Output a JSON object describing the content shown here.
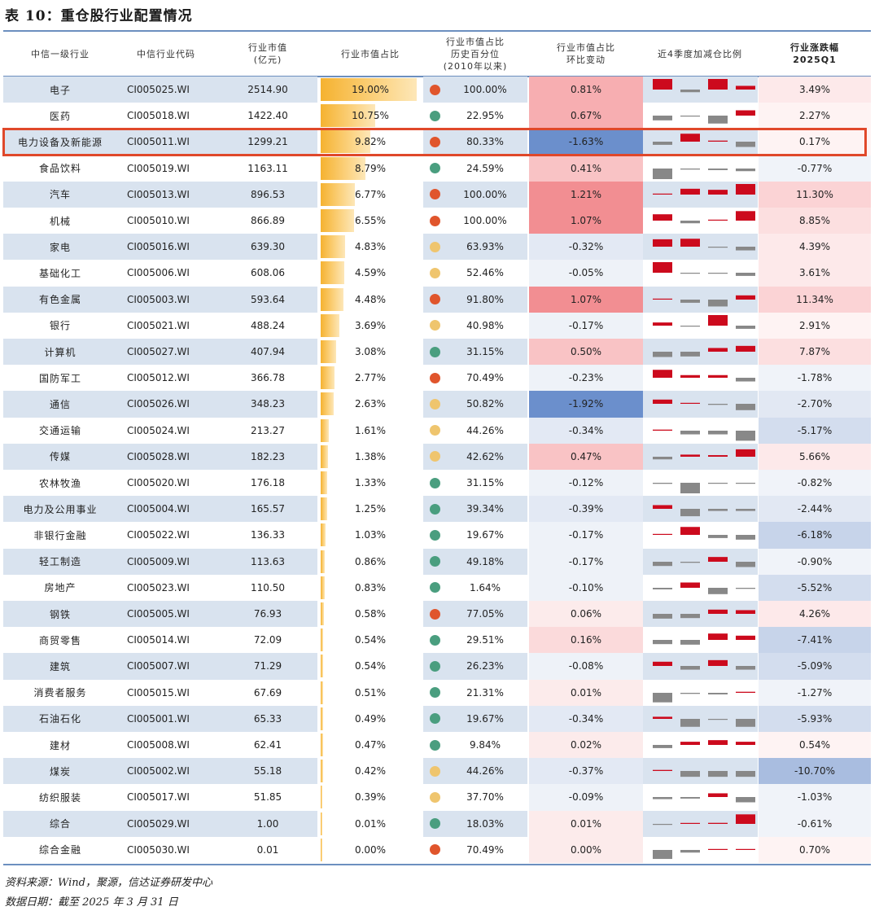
{
  "title": "表 10：重仓股行业配置情况",
  "headers": {
    "industry": "中信一级行业",
    "code": "中信行业代码",
    "market_value": "行业市值\n(亿元)",
    "share": "行业市值占比",
    "percentile": "行业市值占比\n历史百分位\n(2010年以来)",
    "change": "行业市值占比\n环比变动",
    "quarters": "近4季度加减仓比例",
    "return": "行业涨跌幅\n2025Q1"
  },
  "colors": {
    "dot_red": "#e0552c",
    "dot_green": "#4a9e7f",
    "dot_yellow": "#efc56e",
    "increase": "#cc0a1d",
    "decrease": "#888888",
    "negative_strong": "#6b8fcc",
    "positive_strong": "#f08a8e"
  },
  "rows": [
    {
      "name": "电子",
      "code": "CI005025.WI",
      "mv": "2514.90",
      "share": "19.00%",
      "share_value": 19.0,
      "dot": "red",
      "pct": "100.00%",
      "chg": "0.81%",
      "chg_value": 0.81,
      "ret": "3.49%",
      "ret_value": 3.49,
      "spark": [
        1.0,
        -0.25,
        1.0,
        0.35
      ]
    },
    {
      "name": "医药",
      "code": "CI005018.WI",
      "mv": "1422.40",
      "share": "10.75%",
      "share_value": 10.75,
      "dot": "green",
      "pct": "22.95%",
      "chg": "0.67%",
      "chg_value": 0.67,
      "ret": "2.27%",
      "ret_value": 2.27,
      "spark": [
        -0.45,
        -0.08,
        -0.75,
        0.5
      ]
    },
    {
      "name": "电力设备及新能源",
      "code": "CI005011.WI",
      "mv": "1299.21",
      "share": "9.82%",
      "share_value": 9.82,
      "dot": "red",
      "pct": "80.33%",
      "chg": "-1.63%",
      "chg_value": -1.63,
      "ret": "0.17%",
      "ret_value": 0.17,
      "spark": [
        -0.3,
        0.75,
        0.1,
        -0.5
      ]
    },
    {
      "name": "食品饮料",
      "code": "CI005019.WI",
      "mv": "1163.11",
      "share": "8.79%",
      "share_value": 8.79,
      "dot": "green",
      "pct": "24.59%",
      "chg": "0.41%",
      "chg_value": 0.41,
      "ret": "-0.77%",
      "ret_value": -0.77,
      "spark": [
        -1.0,
        -0.1,
        -0.15,
        -0.25
      ]
    },
    {
      "name": "汽车",
      "code": "CI005013.WI",
      "mv": "896.53",
      "share": "6.77%",
      "share_value": 6.77,
      "dot": "red",
      "pct": "100.00%",
      "chg": "1.21%",
      "chg_value": 1.21,
      "ret": "11.30%",
      "ret_value": 11.3,
      "spark": [
        0.05,
        0.55,
        0.45,
        1.0
      ]
    },
    {
      "name": "机械",
      "code": "CI005010.WI",
      "mv": "866.89",
      "share": "6.55%",
      "share_value": 6.55,
      "dot": "red",
      "pct": "100.00%",
      "chg": "1.07%",
      "chg_value": 1.07,
      "ret": "8.85%",
      "ret_value": 8.85,
      "spark": [
        0.6,
        -0.25,
        0.05,
        0.9
      ]
    },
    {
      "name": "家电",
      "code": "CI005016.WI",
      "mv": "639.30",
      "share": "4.83%",
      "share_value": 4.83,
      "dot": "yellow",
      "pct": "63.93%",
      "chg": "-0.32%",
      "chg_value": -0.32,
      "ret": "4.39%",
      "ret_value": 4.39,
      "spark": [
        0.7,
        0.75,
        -0.05,
        -0.35
      ]
    },
    {
      "name": "基础化工",
      "code": "CI005006.WI",
      "mv": "608.06",
      "share": "4.59%",
      "share_value": 4.59,
      "dot": "yellow",
      "pct": "52.46%",
      "chg": "-0.05%",
      "chg_value": -0.05,
      "ret": "3.61%",
      "ret_value": 3.61,
      "spark": [
        1.0,
        -0.05,
        -0.05,
        -0.3
      ]
    },
    {
      "name": "有色金属",
      "code": "CI005003.WI",
      "mv": "593.64",
      "share": "4.48%",
      "share_value": 4.48,
      "dot": "red",
      "pct": "91.80%",
      "chg": "1.07%",
      "chg_value": 1.07,
      "ret": "11.34%",
      "ret_value": 11.34,
      "spark": [
        0.05,
        -0.3,
        -0.65,
        0.4
      ]
    },
    {
      "name": "银行",
      "code": "CI005021.WI",
      "mv": "488.24",
      "share": "3.69%",
      "share_value": 3.69,
      "dot": "yellow",
      "pct": "40.98%",
      "chg": "-0.17%",
      "chg_value": -0.17,
      "ret": "2.91%",
      "ret_value": 2.91,
      "spark": [
        0.3,
        -0.05,
        1.0,
        -0.3
      ]
    },
    {
      "name": "计算机",
      "code": "CI005027.WI",
      "mv": "407.94",
      "share": "3.08%",
      "share_value": 3.08,
      "dot": "green",
      "pct": "31.15%",
      "chg": "0.50%",
      "chg_value": 0.5,
      "ret": "7.87%",
      "ret_value": 7.87,
      "spark": [
        -0.5,
        -0.45,
        0.35,
        0.55
      ]
    },
    {
      "name": "国防军工",
      "code": "CI005012.WI",
      "mv": "366.78",
      "share": "2.77%",
      "share_value": 2.77,
      "dot": "red",
      "pct": "70.49%",
      "chg": "-0.23%",
      "chg_value": -0.23,
      "ret": "-1.78%",
      "ret_value": -1.78,
      "spark": [
        0.75,
        0.25,
        0.25,
        -0.35
      ]
    },
    {
      "name": "通信",
      "code": "CI005026.WI",
      "mv": "348.23",
      "share": "2.63%",
      "share_value": 2.63,
      "dot": "yellow",
      "pct": "50.82%",
      "chg": "-1.92%",
      "chg_value": -1.92,
      "ret": "-2.70%",
      "ret_value": -2.7,
      "spark": [
        0.4,
        0.05,
        -0.1,
        -0.6
      ]
    },
    {
      "name": "交通运输",
      "code": "CI005024.WI",
      "mv": "213.27",
      "share": "1.61%",
      "share_value": 1.61,
      "dot": "yellow",
      "pct": "44.26%",
      "chg": "-0.34%",
      "chg_value": -0.34,
      "ret": "-5.17%",
      "ret_value": -5.17,
      "spark": [
        0.1,
        -0.35,
        -0.35,
        -0.95
      ]
    },
    {
      "name": "传媒",
      "code": "CI005028.WI",
      "mv": "182.23",
      "share": "1.38%",
      "share_value": 1.38,
      "dot": "yellow",
      "pct": "42.62%",
      "chg": "0.47%",
      "chg_value": 0.47,
      "ret": "5.66%",
      "ret_value": 5.66,
      "spark": [
        -0.25,
        0.2,
        0.15,
        0.7
      ]
    },
    {
      "name": "农林牧渔",
      "code": "CI005020.WI",
      "mv": "176.18",
      "share": "1.33%",
      "share_value": 1.33,
      "dot": "green",
      "pct": "31.15%",
      "chg": "-0.12%",
      "chg_value": -0.12,
      "ret": "-0.82%",
      "ret_value": -0.82,
      "spark": [
        -0.1,
        -1.0,
        -0.05,
        -0.05
      ]
    },
    {
      "name": "电力及公用事业",
      "code": "CI005004.WI",
      "mv": "165.57",
      "share": "1.25%",
      "share_value": 1.25,
      "dot": "green",
      "pct": "39.34%",
      "chg": "-0.39%",
      "chg_value": -0.39,
      "ret": "-2.44%",
      "ret_value": -2.44,
      "spark": [
        0.35,
        -0.7,
        -0.2,
        -0.2
      ]
    },
    {
      "name": "非银行金融",
      "code": "CI005022.WI",
      "mv": "136.33",
      "share": "1.03%",
      "share_value": 1.03,
      "dot": "green",
      "pct": "19.67%",
      "chg": "-0.17%",
      "chg_value": -0.17,
      "ret": "-6.18%",
      "ret_value": -6.18,
      "spark": [
        0.05,
        0.75,
        -0.3,
        -0.45
      ]
    },
    {
      "name": "轻工制造",
      "code": "CI005009.WI",
      "mv": "113.63",
      "share": "0.86%",
      "share_value": 0.86,
      "dot": "green",
      "pct": "49.18%",
      "chg": "-0.17%",
      "chg_value": -0.17,
      "ret": "-0.90%",
      "ret_value": -0.9,
      "spark": [
        -0.4,
        -0.1,
        0.45,
        -0.5
      ]
    },
    {
      "name": "房地产",
      "code": "CI005023.WI",
      "mv": "110.50",
      "share": "0.83%",
      "share_value": 0.83,
      "dot": "green",
      "pct": "1.64%",
      "chg": "-0.10%",
      "chg_value": -0.1,
      "ret": "-5.52%",
      "ret_value": -5.52,
      "spark": [
        -0.15,
        0.5,
        -0.6,
        -0.1
      ]
    },
    {
      "name": "钢铁",
      "code": "CI005005.WI",
      "mv": "76.93",
      "share": "0.58%",
      "share_value": 0.58,
      "dot": "red",
      "pct": "77.05%",
      "chg": "0.06%",
      "chg_value": 0.06,
      "ret": "4.26%",
      "ret_value": 4.26,
      "spark": [
        -0.45,
        -0.4,
        0.4,
        0.35
      ]
    },
    {
      "name": "商贸零售",
      "code": "CI005014.WI",
      "mv": "72.09",
      "share": "0.54%",
      "share_value": 0.54,
      "dot": "green",
      "pct": "29.51%",
      "chg": "0.16%",
      "chg_value": 0.16,
      "ret": "-7.41%",
      "ret_value": -7.41,
      "spark": [
        -0.4,
        -0.45,
        0.6,
        0.4
      ]
    },
    {
      "name": "建筑",
      "code": "CI005007.WI",
      "mv": "71.29",
      "share": "0.54%",
      "share_value": 0.54,
      "dot": "green",
      "pct": "26.23%",
      "chg": "-0.08%",
      "chg_value": -0.08,
      "ret": "-5.09%",
      "ret_value": -5.09,
      "spark": [
        0.4,
        -0.35,
        0.55,
        -0.35
      ]
    },
    {
      "name": "消费者服务",
      "code": "CI005015.WI",
      "mv": "67.69",
      "share": "0.51%",
      "share_value": 0.51,
      "dot": "green",
      "pct": "21.31%",
      "chg": "0.01%",
      "chg_value": 0.01,
      "ret": "-1.27%",
      "ret_value": -1.27,
      "spark": [
        -0.9,
        -0.1,
        -0.15,
        0.1
      ]
    },
    {
      "name": "石油石化",
      "code": "CI005001.WI",
      "mv": "65.33",
      "share": "0.49%",
      "share_value": 0.49,
      "dot": "green",
      "pct": "19.67%",
      "chg": "-0.34%",
      "chg_value": -0.34,
      "ret": "-5.93%",
      "ret_value": -5.93,
      "spark": [
        0.2,
        -0.75,
        -0.05,
        -0.75
      ]
    },
    {
      "name": "建材",
      "code": "CI005008.WI",
      "mv": "62.41",
      "share": "0.47%",
      "share_value": 0.47,
      "dot": "green",
      "pct": "9.84%",
      "chg": "0.02%",
      "chg_value": 0.02,
      "ret": "0.54%",
      "ret_value": 0.54,
      "spark": [
        -0.3,
        0.3,
        0.45,
        0.3
      ]
    },
    {
      "name": "煤炭",
      "code": "CI005002.WI",
      "mv": "55.18",
      "share": "0.42%",
      "share_value": 0.42,
      "dot": "yellow",
      "pct": "44.26%",
      "chg": "-0.37%",
      "chg_value": -0.37,
      "ret": "-10.70%",
      "ret_value": -10.7,
      "spark": [
        0.1,
        -0.55,
        -0.55,
        -0.55
      ]
    },
    {
      "name": "纺织服装",
      "code": "CI005017.WI",
      "mv": "51.85",
      "share": "0.39%",
      "share_value": 0.39,
      "dot": "yellow",
      "pct": "37.70%",
      "chg": "-0.09%",
      "chg_value": -0.09,
      "ret": "-1.03%",
      "ret_value": -1.03,
      "spark": [
        -0.2,
        -0.15,
        0.35,
        -0.5
      ]
    },
    {
      "name": "综合",
      "code": "CI005029.WI",
      "mv": "1.00",
      "share": "0.01%",
      "share_value": 0.01,
      "dot": "green",
      "pct": "18.03%",
      "chg": "0.01%",
      "chg_value": 0.01,
      "ret": "-0.61%",
      "ret_value": -0.61,
      "spark": [
        -0.05,
        0.05,
        0.1,
        0.9
      ]
    },
    {
      "name": "综合金融",
      "code": "CI005030.WI",
      "mv": "0.01",
      "share": "0.00%",
      "share_value": 0.0,
      "dot": "red",
      "pct": "70.49%",
      "chg": "0.00%",
      "chg_value": 0.0,
      "ret": "0.70%",
      "ret_value": 0.7,
      "spark": [
        -0.85,
        -0.25,
        0.0,
        0.0
      ]
    }
  ],
  "footnotes": {
    "source": "资料来源：Wind，聚源，信达证券研发中心",
    "date": "数据日期：截至 2025 年 3 月 31 日"
  }
}
